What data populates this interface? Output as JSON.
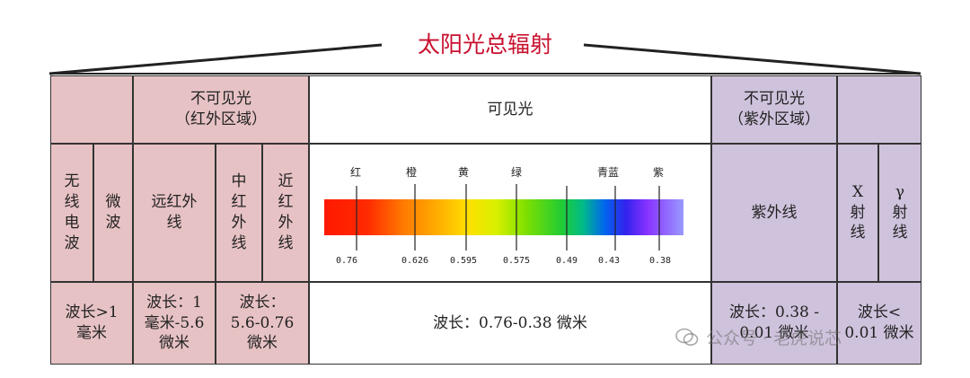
{
  "title": "太阳光总辐射",
  "colors": {
    "title": "#c8102e",
    "infrared_bg": "#e7c2c4",
    "ultraviolet_bg": "#cfc2dc"
  },
  "header": {
    "infrared": [
      "不可见光",
      "（红外区域）"
    ],
    "visible": "可见光",
    "ultraviolet": [
      "不可见光",
      "（紫外区域）"
    ]
  },
  "bands": {
    "radio": [
      "无",
      "线",
      "电",
      "波"
    ],
    "microwave": [
      "微",
      "波"
    ],
    "far_ir": [
      "远红外",
      "线"
    ],
    "mid_ir": [
      "中",
      "红",
      "外",
      "线"
    ],
    "near_ir": [
      "近",
      "红",
      "外",
      "线"
    ],
    "uv": "紫外线",
    "xray": [
      "X",
      "射",
      "线"
    ],
    "gamma": [
      "γ",
      "射",
      "线"
    ]
  },
  "spectrum": {
    "color_labels": [
      "红",
      "橙",
      "黄",
      "绿",
      "青蓝",
      "紫"
    ],
    "wavelengths": [
      "0.76",
      "0.626",
      "0.595",
      "0.575",
      "0.49",
      "0.43",
      "0.38"
    ]
  },
  "wavelength_row": {
    "radio_micro": [
      "波长>1",
      "毫米"
    ],
    "far_ir": [
      "波长：1",
      "毫米-5.6",
      "微米"
    ],
    "mid_near_ir": [
      "波长：",
      "5.6-0.76",
      "微米"
    ],
    "visible": "波长：0.76-0.38 微米",
    "uv": [
      "波长：0.38 -",
      "0.01 微米"
    ],
    "xray_gamma": [
      "波长<",
      "0.01 微米"
    ]
  },
  "watermark": "公众号 · 老虎说芯"
}
